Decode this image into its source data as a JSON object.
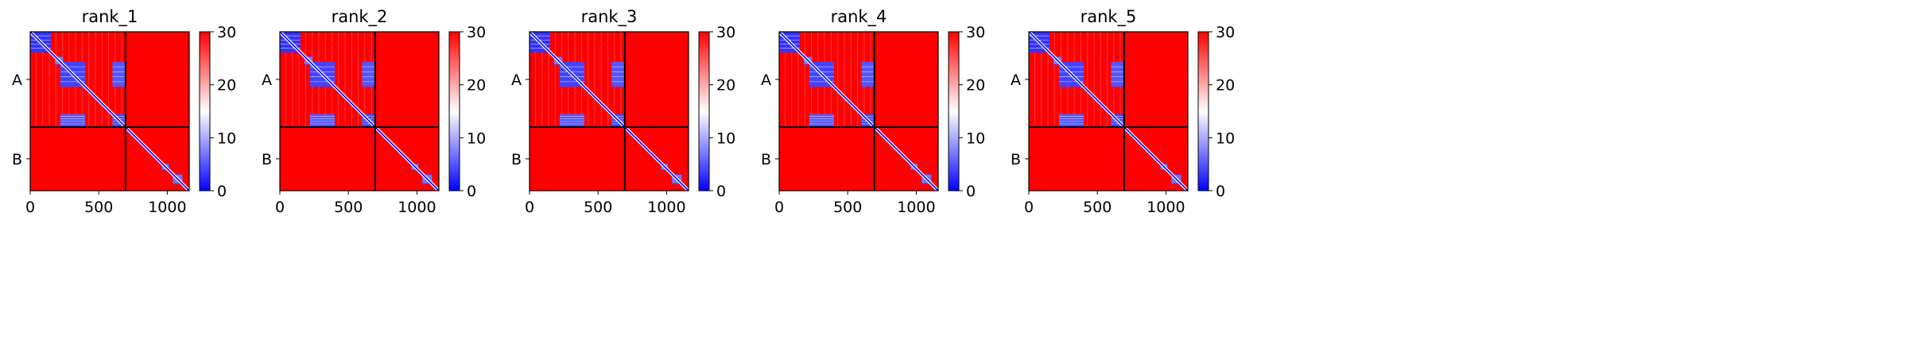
{
  "chart_data": {
    "type": "heatmap",
    "colormap": {
      "name": "bwr",
      "stops": [
        "#0000ff",
        "#ffffff",
        "#ff0000"
      ],
      "range": [
        0,
        30
      ],
      "ticks": [
        "0",
        "10",
        "20",
        "30"
      ]
    },
    "x_ticks": [
      {
        "value": 0,
        "label": "0"
      },
      {
        "value": 500,
        "label": "500"
      },
      {
        "value": 1000,
        "label": "1000"
      }
    ],
    "xlim": [
      0,
      1160
    ],
    "ylim": [
      0,
      1160
    ],
    "chain_boundary": 695,
    "chain_labels": [
      "A",
      "B"
    ],
    "grid": false,
    "panels": [
      {
        "title": "rank_1",
        "low_regions": [
          {
            "x": [
              0,
              150
            ],
            "y": [
              0,
              150
            ],
            "value": 3
          },
          {
            "x": [
              220,
              400
            ],
            "y": [
              220,
              400
            ],
            "value": 4
          },
          {
            "x": [
              220,
              400
            ],
            "y": [
              600,
              690
            ],
            "value": 5
          },
          {
            "x": [
              600,
              690
            ],
            "y": [
              220,
              400
            ],
            "value": 5
          },
          {
            "x": [
              600,
              690
            ],
            "y": [
              600,
              690
            ],
            "value": 4
          },
          {
            "x": [
              180,
              240
            ],
            "y": [
              180,
              240
            ],
            "value": 5
          },
          {
            "x": [
              960,
              1010
            ],
            "y": [
              960,
              1010
            ],
            "value": 4
          },
          {
            "x": [
              1040,
              1110
            ],
            "y": [
              1040,
              1110
            ],
            "value": 5
          }
        ]
      },
      {
        "title": "rank_2",
        "low_regions": [
          {
            "x": [
              0,
              150
            ],
            "y": [
              0,
              150
            ],
            "value": 3
          },
          {
            "x": [
              220,
              400
            ],
            "y": [
              220,
              400
            ],
            "value": 4
          },
          {
            "x": [
              220,
              400
            ],
            "y": [
              600,
              690
            ],
            "value": 5
          },
          {
            "x": [
              600,
              690
            ],
            "y": [
              220,
              400
            ],
            "value": 5
          },
          {
            "x": [
              600,
              690
            ],
            "y": [
              600,
              690
            ],
            "value": 4
          },
          {
            "x": [
              180,
              240
            ],
            "y": [
              180,
              240
            ],
            "value": 5
          },
          {
            "x": [
              960,
              1010
            ],
            "y": [
              960,
              1010
            ],
            "value": 4
          },
          {
            "x": [
              1040,
              1110
            ],
            "y": [
              1040,
              1110
            ],
            "value": 5
          }
        ]
      },
      {
        "title": "rank_3",
        "low_regions": [
          {
            "x": [
              0,
              150
            ],
            "y": [
              0,
              150
            ],
            "value": 3
          },
          {
            "x": [
              220,
              400
            ],
            "y": [
              220,
              400
            ],
            "value": 4
          },
          {
            "x": [
              220,
              400
            ],
            "y": [
              600,
              690
            ],
            "value": 5
          },
          {
            "x": [
              600,
              690
            ],
            "y": [
              220,
              400
            ],
            "value": 5
          },
          {
            "x": [
              600,
              690
            ],
            "y": [
              600,
              690
            ],
            "value": 4
          },
          {
            "x": [
              180,
              240
            ],
            "y": [
              180,
              240
            ],
            "value": 5
          },
          {
            "x": [
              960,
              1010
            ],
            "y": [
              960,
              1010
            ],
            "value": 4
          },
          {
            "x": [
              1040,
              1110
            ],
            "y": [
              1040,
              1110
            ],
            "value": 5
          }
        ]
      },
      {
        "title": "rank_4",
        "low_regions": [
          {
            "x": [
              0,
              150
            ],
            "y": [
              0,
              150
            ],
            "value": 3
          },
          {
            "x": [
              220,
              400
            ],
            "y": [
              220,
              400
            ],
            "value": 4
          },
          {
            "x": [
              220,
              400
            ],
            "y": [
              600,
              690
            ],
            "value": 5
          },
          {
            "x": [
              600,
              690
            ],
            "y": [
              220,
              400
            ],
            "value": 5
          },
          {
            "x": [
              600,
              690
            ],
            "y": [
              600,
              690
            ],
            "value": 4
          },
          {
            "x": [
              180,
              240
            ],
            "y": [
              180,
              240
            ],
            "value": 5
          },
          {
            "x": [
              960,
              1010
            ],
            "y": [
              960,
              1010
            ],
            "value": 4
          },
          {
            "x": [
              1040,
              1110
            ],
            "y": [
              1040,
              1110
            ],
            "value": 5
          }
        ]
      },
      {
        "title": "rank_5",
        "low_regions": [
          {
            "x": [
              0,
              150
            ],
            "y": [
              0,
              150
            ],
            "value": 3
          },
          {
            "x": [
              220,
              400
            ],
            "y": [
              220,
              400
            ],
            "value": 4
          },
          {
            "x": [
              220,
              400
            ],
            "y": [
              600,
              690
            ],
            "value": 5
          },
          {
            "x": [
              600,
              690
            ],
            "y": [
              220,
              400
            ],
            "value": 5
          },
          {
            "x": [
              600,
              690
            ],
            "y": [
              600,
              690
            ],
            "value": 4
          },
          {
            "x": [
              180,
              240
            ],
            "y": [
              180,
              240
            ],
            "value": 5
          },
          {
            "x": [
              960,
              1010
            ],
            "y": [
              960,
              1010
            ],
            "value": 4
          },
          {
            "x": [
              1040,
              1110
            ],
            "y": [
              1040,
              1110
            ],
            "value": 5
          }
        ]
      }
    ]
  }
}
